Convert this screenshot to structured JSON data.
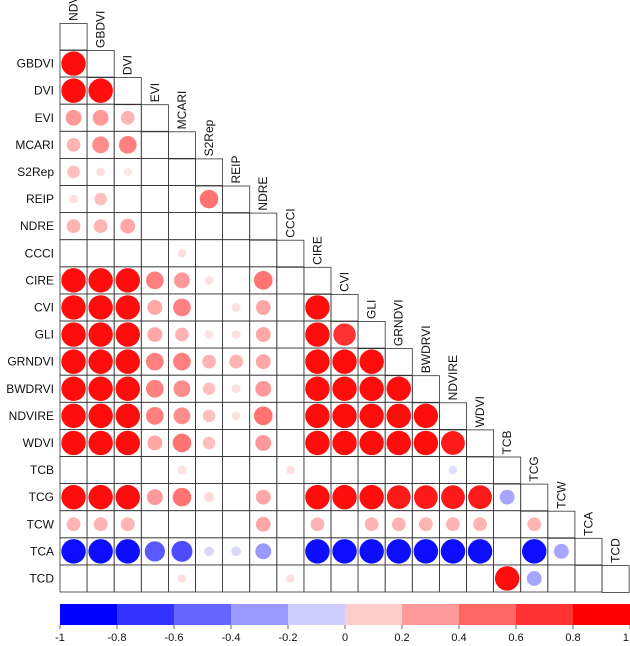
{
  "chart_data": {
    "type": "heatmap",
    "variables": [
      "NDVI",
      "GBDVI",
      "DVI",
      "EVI",
      "MCARI",
      "S2Rep",
      "REIP",
      "NDRE",
      "CCCI",
      "CIRE",
      "CVI",
      "GLI",
      "GRNDVI",
      "BWDRVI",
      "NDVIRE",
      "WDVI",
      "TCB",
      "TCG",
      "TCW",
      "TCA",
      "TCD"
    ],
    "row_labels": [
      "GBDVI",
      "DVI",
      "EVI",
      "MCARI",
      "S2Rep",
      "REIP",
      "NDRE",
      "CCCI",
      "CIRE",
      "CVI",
      "GLI",
      "GRNDVI",
      "BWDRVI",
      "NDVIRE",
      "WDVI",
      "TCB",
      "TCG",
      "TCW",
      "TCA",
      "TCD"
    ],
    "col_labels": [
      "NDVI",
      "GBDVI",
      "DVI",
      "EVI",
      "MCARI",
      "S2Rep",
      "REIP",
      "NDRE",
      "CCCI",
      "CIRE",
      "CVI",
      "GLI",
      "GRNDVI",
      "BWDRVI",
      "NDVIRE",
      "WDVI",
      "TCB",
      "TCG",
      "TCW",
      "TCA",
      "TCD"
    ],
    "correlations": [
      [
        0.95
      ],
      [
        0.95,
        0.95
      ],
      [
        0.4,
        0.4,
        0.3
      ],
      [
        0.3,
        0.45,
        0.5,
        null
      ],
      [
        0.25,
        0.12,
        0.1,
        null,
        null
      ],
      [
        0.12,
        0.25,
        null,
        null,
        null,
        0.55
      ],
      [
        0.3,
        0.3,
        0.35,
        null,
        null,
        null,
        null
      ],
      [
        null,
        null,
        null,
        null,
        0.12,
        null,
        null,
        null
      ],
      [
        0.95,
        0.95,
        0.95,
        0.5,
        0.4,
        0.12,
        null,
        0.55,
        null
      ],
      [
        0.95,
        0.95,
        0.95,
        0.35,
        0.5,
        null,
        0.12,
        0.35,
        null,
        0.95
      ],
      [
        0.95,
        0.95,
        0.95,
        0.35,
        0.3,
        0.12,
        0.12,
        0.35,
        null,
        0.95,
        0.8
      ],
      [
        0.95,
        0.95,
        0.95,
        0.5,
        0.5,
        0.3,
        0.3,
        0.35,
        null,
        0.95,
        0.95,
        0.95
      ],
      [
        0.95,
        0.95,
        0.95,
        0.5,
        0.45,
        0.25,
        0.12,
        0.4,
        null,
        0.95,
        0.95,
        0.95,
        0.95
      ],
      [
        0.95,
        0.95,
        0.95,
        0.5,
        0.45,
        0.25,
        0.12,
        0.55,
        null,
        0.95,
        0.95,
        0.95,
        0.95,
        0.95
      ],
      [
        0.95,
        0.95,
        0.95,
        0.35,
        0.55,
        0.25,
        null,
        0.4,
        null,
        0.95,
        0.95,
        0.95,
        0.95,
        0.95,
        0.9
      ],
      [
        null,
        null,
        null,
        null,
        0.12,
        null,
        null,
        null,
        0.12,
        null,
        null,
        null,
        null,
        null,
        -0.12,
        null
      ],
      [
        0.95,
        0.95,
        0.95,
        0.4,
        0.55,
        0.15,
        null,
        0.35,
        null,
        0.95,
        0.95,
        0.95,
        0.9,
        0.9,
        0.9,
        0.9,
        -0.35
      ],
      [
        0.3,
        0.3,
        0.3,
        null,
        null,
        null,
        null,
        0.35,
        null,
        0.3,
        null,
        0.3,
        0.3,
        0.3,
        0.3,
        0.3,
        null,
        0.3
      ],
      [
        -0.95,
        -0.95,
        -0.95,
        -0.65,
        -0.7,
        -0.15,
        -0.15,
        -0.4,
        null,
        -0.95,
        -0.95,
        -0.95,
        -0.95,
        -0.95,
        -0.95,
        -0.95,
        null,
        -0.95,
        -0.35
      ],
      [
        null,
        null,
        null,
        null,
        0.12,
        null,
        null,
        null,
        0.12,
        null,
        null,
        null,
        null,
        null,
        null,
        null,
        0.95,
        -0.35,
        null,
        null
      ]
    ],
    "colorbar": {
      "range": [
        -1,
        1
      ],
      "ticks": [
        "-1",
        "-0.8",
        "-0.6",
        "-0.4",
        "-0.2",
        "0",
        "0.2",
        "0.4",
        "0.6",
        "0.8",
        "1"
      ],
      "bands": 10
    },
    "colors": {
      "negative": "#0000ff",
      "positive": "#ff0000",
      "neutral": "#ffffff",
      "grid": "#333333"
    },
    "title": "",
    "xlabel": "",
    "ylabel": ""
  }
}
